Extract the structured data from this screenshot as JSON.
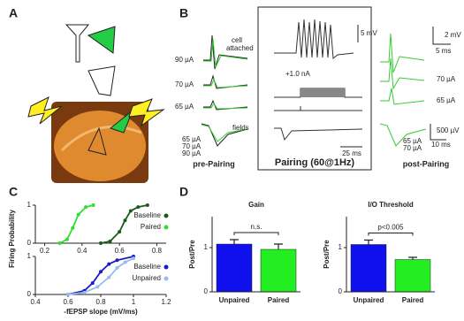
{
  "panel_labels": [
    "A",
    "B",
    "C",
    "D"
  ],
  "panel_b": {
    "pre": {
      "currents": [
        "90 µA",
        "70 µA",
        "65 µA"
      ],
      "cell_attached": [
        "cell",
        "attached"
      ],
      "fields": "fields",
      "field_currents": [
        "65 µA",
        "70 µA",
        "90 µA"
      ],
      "title": "pre-Pairing"
    },
    "pairing": {
      "scale_v": "5 mV",
      "current": "+1.0 nA",
      "scale_t": "25 ms",
      "title": "Pairing (60@1Hz)"
    },
    "post": {
      "scale_v": "2 mV",
      "scale_t": "5 ms",
      "currents": [
        "70 µA",
        "65 µA"
      ],
      "field_currents": [
        "65 µA",
        "70 µA"
      ],
      "field_scale_v": "500 µV",
      "field_scale_t": "10 ms",
      "title": "post-Pairing"
    }
  },
  "chart_data": [
    {
      "type": "line",
      "ylabel": "Firing Probability",
      "xlim": [
        0.15,
        0.85
      ],
      "xticks": [
        0.2,
        0.4,
        0.6,
        0.8
      ],
      "ylim": [
        0,
        1
      ],
      "yticks": [
        0,
        1
      ],
      "legend": "right",
      "series": [
        {
          "name": "Baseline",
          "color": "#1a5c1a",
          "x": [
            0.5,
            0.55,
            0.6,
            0.63,
            0.66,
            0.7,
            0.75
          ],
          "values": [
            0,
            0.05,
            0.3,
            0.6,
            0.85,
            0.95,
            1
          ]
        },
        {
          "name": "Paired",
          "color": "#33dd33",
          "x": [
            0.28,
            0.32,
            0.35,
            0.38,
            0.42,
            0.46
          ],
          "values": [
            0,
            0.1,
            0.4,
            0.75,
            0.95,
            1
          ]
        }
      ]
    },
    {
      "type": "line",
      "xlabel": "-fEPSP slope (mV/ms)",
      "xlim": [
        0.4,
        1.2
      ],
      "xticks": [
        0.4,
        0.6,
        0.8,
        1,
        1.2
      ],
      "ylim": [
        0,
        1
      ],
      "yticks": [
        0,
        1
      ],
      "legend": "right",
      "series": [
        {
          "name": "Baseline",
          "color": "#1a1acc",
          "x": [
            0.6,
            0.7,
            0.75,
            0.8,
            0.85,
            0.9,
            1
          ],
          "values": [
            0,
            0.1,
            0.3,
            0.6,
            0.8,
            0.9,
            1
          ]
        },
        {
          "name": "Unpaired",
          "color": "#99bbee",
          "x": [
            0.6,
            0.7,
            0.78,
            0.85,
            0.9,
            0.95,
            1
          ],
          "values": [
            0,
            0.05,
            0.2,
            0.45,
            0.7,
            0.85,
            0.95
          ]
        }
      ]
    },
    {
      "type": "bar",
      "title": "Gain",
      "ylabel": "Post/Pre",
      "categories": [
        "Unpaired",
        "Paired"
      ],
      "values": [
        1.08,
        0.96
      ],
      "errors": [
        0.1,
        0.12
      ],
      "colors": [
        "#1010ee",
        "#22ee22"
      ],
      "ylim": [
        0,
        1.7
      ],
      "yticks": [
        0,
        1
      ],
      "annotation": "n.s."
    },
    {
      "type": "bar",
      "title": "I/O Threshold",
      "ylabel": "Post/Pre",
      "categories": [
        "Unpaired",
        "Paired"
      ],
      "values": [
        1.07,
        0.73
      ],
      "errors": [
        0.1,
        0.05
      ],
      "colors": [
        "#1010ee",
        "#22ee22"
      ],
      "ylim": [
        0,
        1.7
      ],
      "yticks": [
        0,
        1
      ],
      "annotation": "p<0.005"
    }
  ]
}
